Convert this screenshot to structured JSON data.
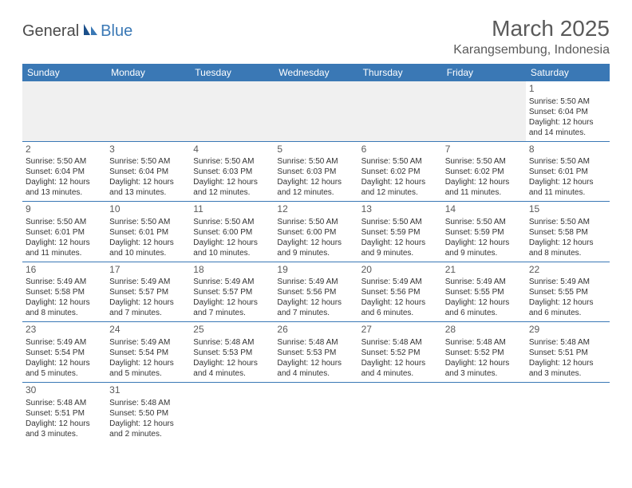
{
  "logo": {
    "general": "General",
    "blue": "Blue"
  },
  "title": "March 2025",
  "location": "Karangsembung, Indonesia",
  "colors": {
    "header_bg": "#3a78b5",
    "header_text": "#ffffff",
    "grid_line": "#3a78b5",
    "text": "#333333",
    "title_text": "#5a5a5a",
    "blank_bg": "#f0f0f0"
  },
  "typography": {
    "title_fontsize": 28,
    "location_fontsize": 16,
    "dayheader_fontsize": 12,
    "daynum_fontsize": 12,
    "cell_fontsize": 10
  },
  "day_headers": [
    "Sunday",
    "Monday",
    "Tuesday",
    "Wednesday",
    "Thursday",
    "Friday",
    "Saturday"
  ],
  "weeks": [
    [
      null,
      null,
      null,
      null,
      null,
      null,
      {
        "n": "1",
        "sr": "5:50 AM",
        "ss": "6:04 PM",
        "dl": "12 hours and 14 minutes."
      }
    ],
    [
      {
        "n": "2",
        "sr": "5:50 AM",
        "ss": "6:04 PM",
        "dl": "12 hours and 13 minutes."
      },
      {
        "n": "3",
        "sr": "5:50 AM",
        "ss": "6:04 PM",
        "dl": "12 hours and 13 minutes."
      },
      {
        "n": "4",
        "sr": "5:50 AM",
        "ss": "6:03 PM",
        "dl": "12 hours and 12 minutes."
      },
      {
        "n": "5",
        "sr": "5:50 AM",
        "ss": "6:03 PM",
        "dl": "12 hours and 12 minutes."
      },
      {
        "n": "6",
        "sr": "5:50 AM",
        "ss": "6:02 PM",
        "dl": "12 hours and 12 minutes."
      },
      {
        "n": "7",
        "sr": "5:50 AM",
        "ss": "6:02 PM",
        "dl": "12 hours and 11 minutes."
      },
      {
        "n": "8",
        "sr": "5:50 AM",
        "ss": "6:01 PM",
        "dl": "12 hours and 11 minutes."
      }
    ],
    [
      {
        "n": "9",
        "sr": "5:50 AM",
        "ss": "6:01 PM",
        "dl": "12 hours and 11 minutes."
      },
      {
        "n": "10",
        "sr": "5:50 AM",
        "ss": "6:01 PM",
        "dl": "12 hours and 10 minutes."
      },
      {
        "n": "11",
        "sr": "5:50 AM",
        "ss": "6:00 PM",
        "dl": "12 hours and 10 minutes."
      },
      {
        "n": "12",
        "sr": "5:50 AM",
        "ss": "6:00 PM",
        "dl": "12 hours and 9 minutes."
      },
      {
        "n": "13",
        "sr": "5:50 AM",
        "ss": "5:59 PM",
        "dl": "12 hours and 9 minutes."
      },
      {
        "n": "14",
        "sr": "5:50 AM",
        "ss": "5:59 PM",
        "dl": "12 hours and 9 minutes."
      },
      {
        "n": "15",
        "sr": "5:50 AM",
        "ss": "5:58 PM",
        "dl": "12 hours and 8 minutes."
      }
    ],
    [
      {
        "n": "16",
        "sr": "5:49 AM",
        "ss": "5:58 PM",
        "dl": "12 hours and 8 minutes."
      },
      {
        "n": "17",
        "sr": "5:49 AM",
        "ss": "5:57 PM",
        "dl": "12 hours and 7 minutes."
      },
      {
        "n": "18",
        "sr": "5:49 AM",
        "ss": "5:57 PM",
        "dl": "12 hours and 7 minutes."
      },
      {
        "n": "19",
        "sr": "5:49 AM",
        "ss": "5:56 PM",
        "dl": "12 hours and 7 minutes."
      },
      {
        "n": "20",
        "sr": "5:49 AM",
        "ss": "5:56 PM",
        "dl": "12 hours and 6 minutes."
      },
      {
        "n": "21",
        "sr": "5:49 AM",
        "ss": "5:55 PM",
        "dl": "12 hours and 6 minutes."
      },
      {
        "n": "22",
        "sr": "5:49 AM",
        "ss": "5:55 PM",
        "dl": "12 hours and 6 minutes."
      }
    ],
    [
      {
        "n": "23",
        "sr": "5:49 AM",
        "ss": "5:54 PM",
        "dl": "12 hours and 5 minutes."
      },
      {
        "n": "24",
        "sr": "5:49 AM",
        "ss": "5:54 PM",
        "dl": "12 hours and 5 minutes."
      },
      {
        "n": "25",
        "sr": "5:48 AM",
        "ss": "5:53 PM",
        "dl": "12 hours and 4 minutes."
      },
      {
        "n": "26",
        "sr": "5:48 AM",
        "ss": "5:53 PM",
        "dl": "12 hours and 4 minutes."
      },
      {
        "n": "27",
        "sr": "5:48 AM",
        "ss": "5:52 PM",
        "dl": "12 hours and 4 minutes."
      },
      {
        "n": "28",
        "sr": "5:48 AM",
        "ss": "5:52 PM",
        "dl": "12 hours and 3 minutes."
      },
      {
        "n": "29",
        "sr": "5:48 AM",
        "ss": "5:51 PM",
        "dl": "12 hours and 3 minutes."
      }
    ],
    [
      {
        "n": "30",
        "sr": "5:48 AM",
        "ss": "5:51 PM",
        "dl": "12 hours and 3 minutes."
      },
      {
        "n": "31",
        "sr": "5:48 AM",
        "ss": "5:50 PM",
        "dl": "12 hours and 2 minutes."
      },
      null,
      null,
      null,
      null,
      null
    ]
  ],
  "labels": {
    "sunrise": "Sunrise:",
    "sunset": "Sunset:",
    "daylight": "Daylight:"
  }
}
